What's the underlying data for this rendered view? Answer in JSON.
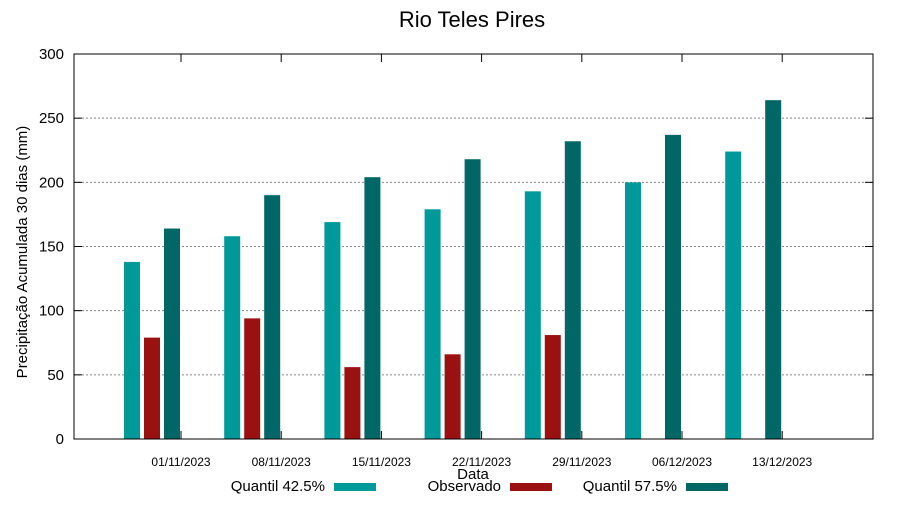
{
  "chart_data": {
    "type": "bar",
    "title": "Rio Teles Pires",
    "xlabel": "Data",
    "ylabel": "Precipitação Acumulada 30 dias (mm)",
    "ylim": [
      0,
      300
    ],
    "yticks": [
      0,
      50,
      100,
      150,
      200,
      250,
      300
    ],
    "grid": true,
    "legend_position": "bottom",
    "categories": [
      "01/11/2023",
      "08/11/2023",
      "15/11/2023",
      "22/11/2023",
      "29/11/2023",
      "06/12/2023",
      "13/12/2023"
    ],
    "series": [
      {
        "name": "Quantil 42.5%",
        "color": "#009999",
        "values": [
          138,
          158,
          169,
          179,
          193,
          200,
          224
        ]
      },
      {
        "name": "Observado",
        "color": "#991111",
        "values": [
          79,
          94,
          56,
          66,
          81,
          null,
          null
        ]
      },
      {
        "name": "Quantil 57.5%",
        "color": "#006666",
        "values": [
          164,
          190,
          204,
          218,
          232,
          237,
          264
        ]
      }
    ]
  }
}
